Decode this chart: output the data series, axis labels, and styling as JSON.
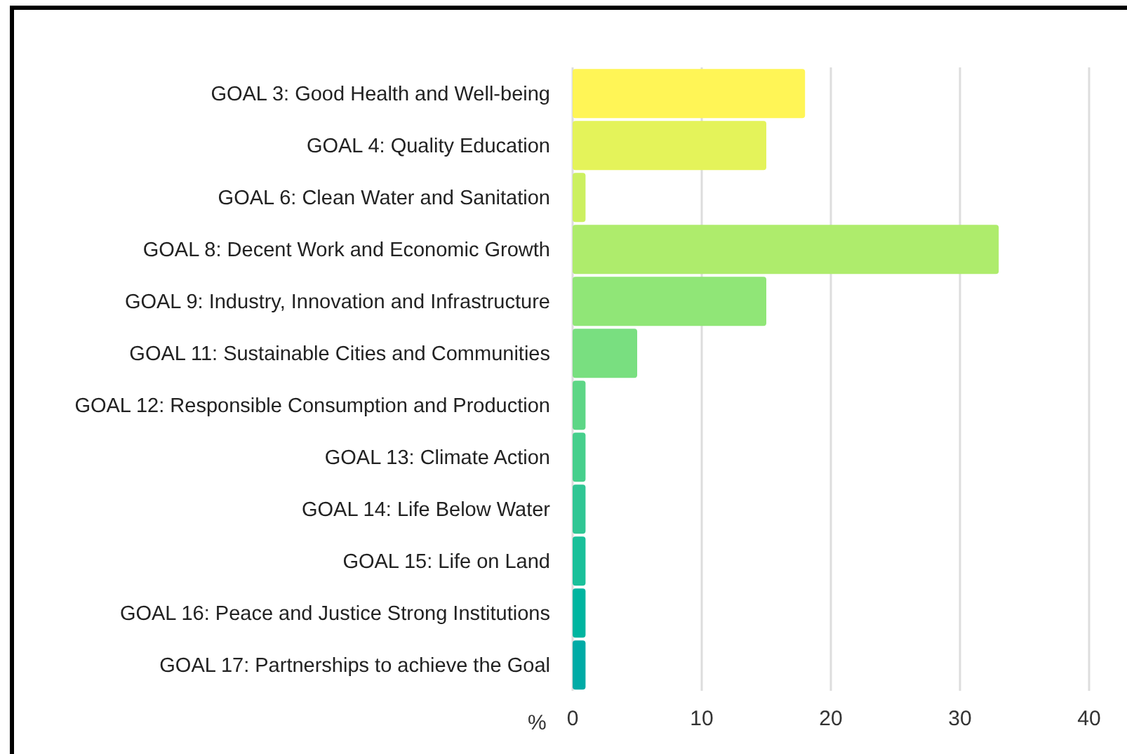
{
  "chart_data": {
    "type": "bar",
    "orientation": "horizontal",
    "xlabel": "%",
    "categories": [
      "GOAL 3: Good Health and Well-being",
      "GOAL 4: Quality Education",
      "GOAL 6: Clean Water and Sanitation",
      "GOAL 8: Decent Work and Economic Growth",
      "GOAL 9: Industry, Innovation and Infrastructure",
      "GOAL 11: Sustainable Cities and Communities",
      "GOAL 12: Responsible Consumption and Production",
      "GOAL 13: Climate Action",
      "GOAL 14: Life Below Water",
      "GOAL 15: Life on Land",
      "GOAL 16: Peace and Justice Strong Institutions",
      "GOAL 17: Partnerships to achieve the Goal"
    ],
    "values": [
      18,
      15,
      1,
      33,
      15,
      5,
      1,
      1,
      1,
      1,
      1,
      1
    ],
    "colors": [
      "#fff556",
      "#e4f35a",
      "#ccf060",
      "#aeec6c",
      "#90e677",
      "#79df80",
      "#5dd686",
      "#46cf8c",
      "#30c694",
      "#1ac09a",
      "#00b5a0",
      "#00aba6"
    ],
    "xlim": [
      0,
      40
    ],
    "xticks": [
      0,
      10,
      20,
      30,
      40
    ],
    "grid": "x"
  }
}
